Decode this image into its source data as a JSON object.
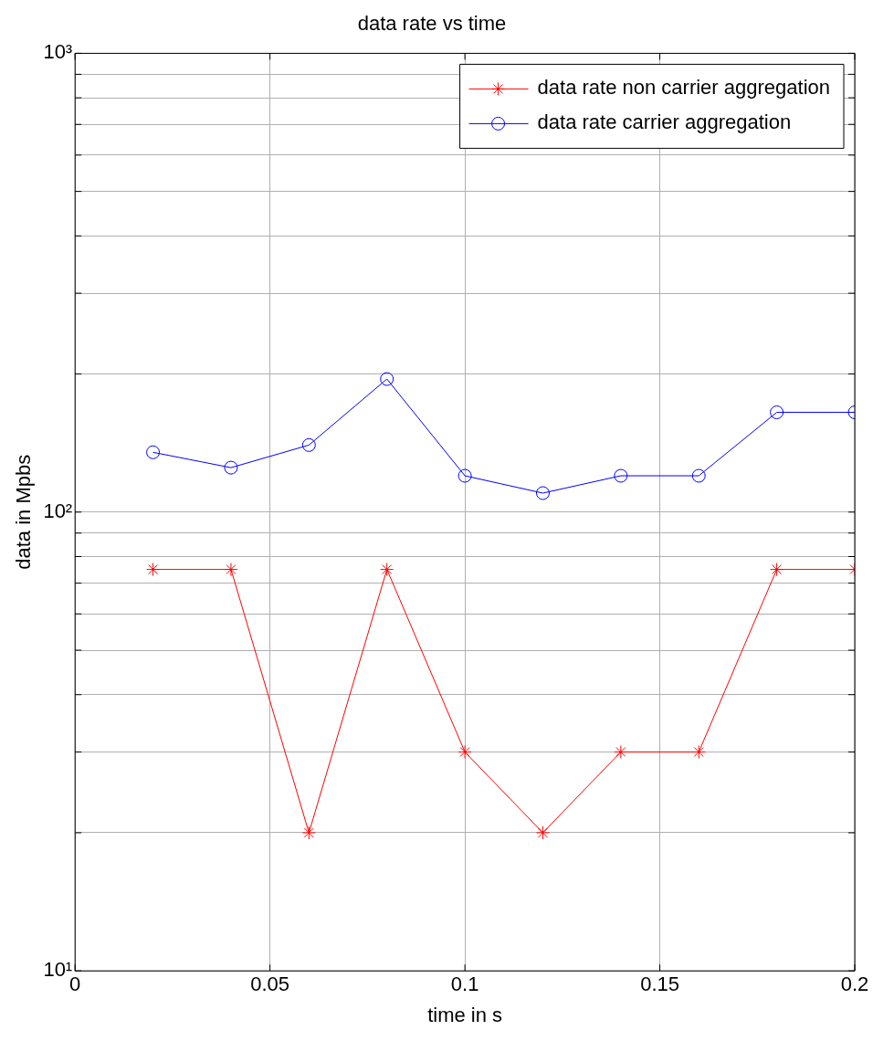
{
  "chart_data": {
    "type": "line",
    "title": "data rate vs time",
    "xlabel": "time in s",
    "ylabel": "data in Mpbs",
    "x": [
      0.02,
      0.04,
      0.06,
      0.08,
      0.1,
      0.12,
      0.14,
      0.16,
      0.18,
      0.2
    ],
    "series": [
      {
        "name": "data rate non carrier aggregation",
        "color": "#ff0000",
        "marker": "cross",
        "values": [
          75,
          75,
          20,
          75,
          30,
          20,
          30,
          30,
          75,
          75
        ]
      },
      {
        "name": "data rate carrier aggregation",
        "color": "#0000ff",
        "marker": "circle",
        "values": [
          135,
          125,
          140,
          195,
          120,
          110,
          120,
          120,
          165,
          165
        ]
      }
    ],
    "log": "y",
    "xlim": [
      0,
      0.2
    ],
    "xticks": [
      0,
      0.05,
      0.1,
      0.15,
      0.2
    ],
    "ylim": [
      10,
      1000
    ],
    "yticks": [
      {
        "value": 10,
        "label": "10¹"
      },
      {
        "value": 20,
        "label": null
      },
      {
        "value": 30,
        "label": null
      },
      {
        "value": 40,
        "label": null
      },
      {
        "value": 50,
        "label": null
      },
      {
        "value": 60,
        "label": null
      },
      {
        "value": 70,
        "label": null
      },
      {
        "value": 80,
        "label": null
      },
      {
        "value": 90,
        "label": null
      },
      {
        "value": 100,
        "label": "10²"
      },
      {
        "value": 200,
        "label": null
      },
      {
        "value": 300,
        "label": null
      },
      {
        "value": 400,
        "label": null
      },
      {
        "value": 500,
        "label": null
      },
      {
        "value": 600,
        "label": null
      },
      {
        "value": 700,
        "label": null
      },
      {
        "value": 800,
        "label": null
      },
      {
        "value": 900,
        "label": null
      },
      {
        "value": 1000,
        "label": "10³"
      }
    ],
    "grid": true,
    "legend": "top right",
    "line_style": "solid"
  }
}
